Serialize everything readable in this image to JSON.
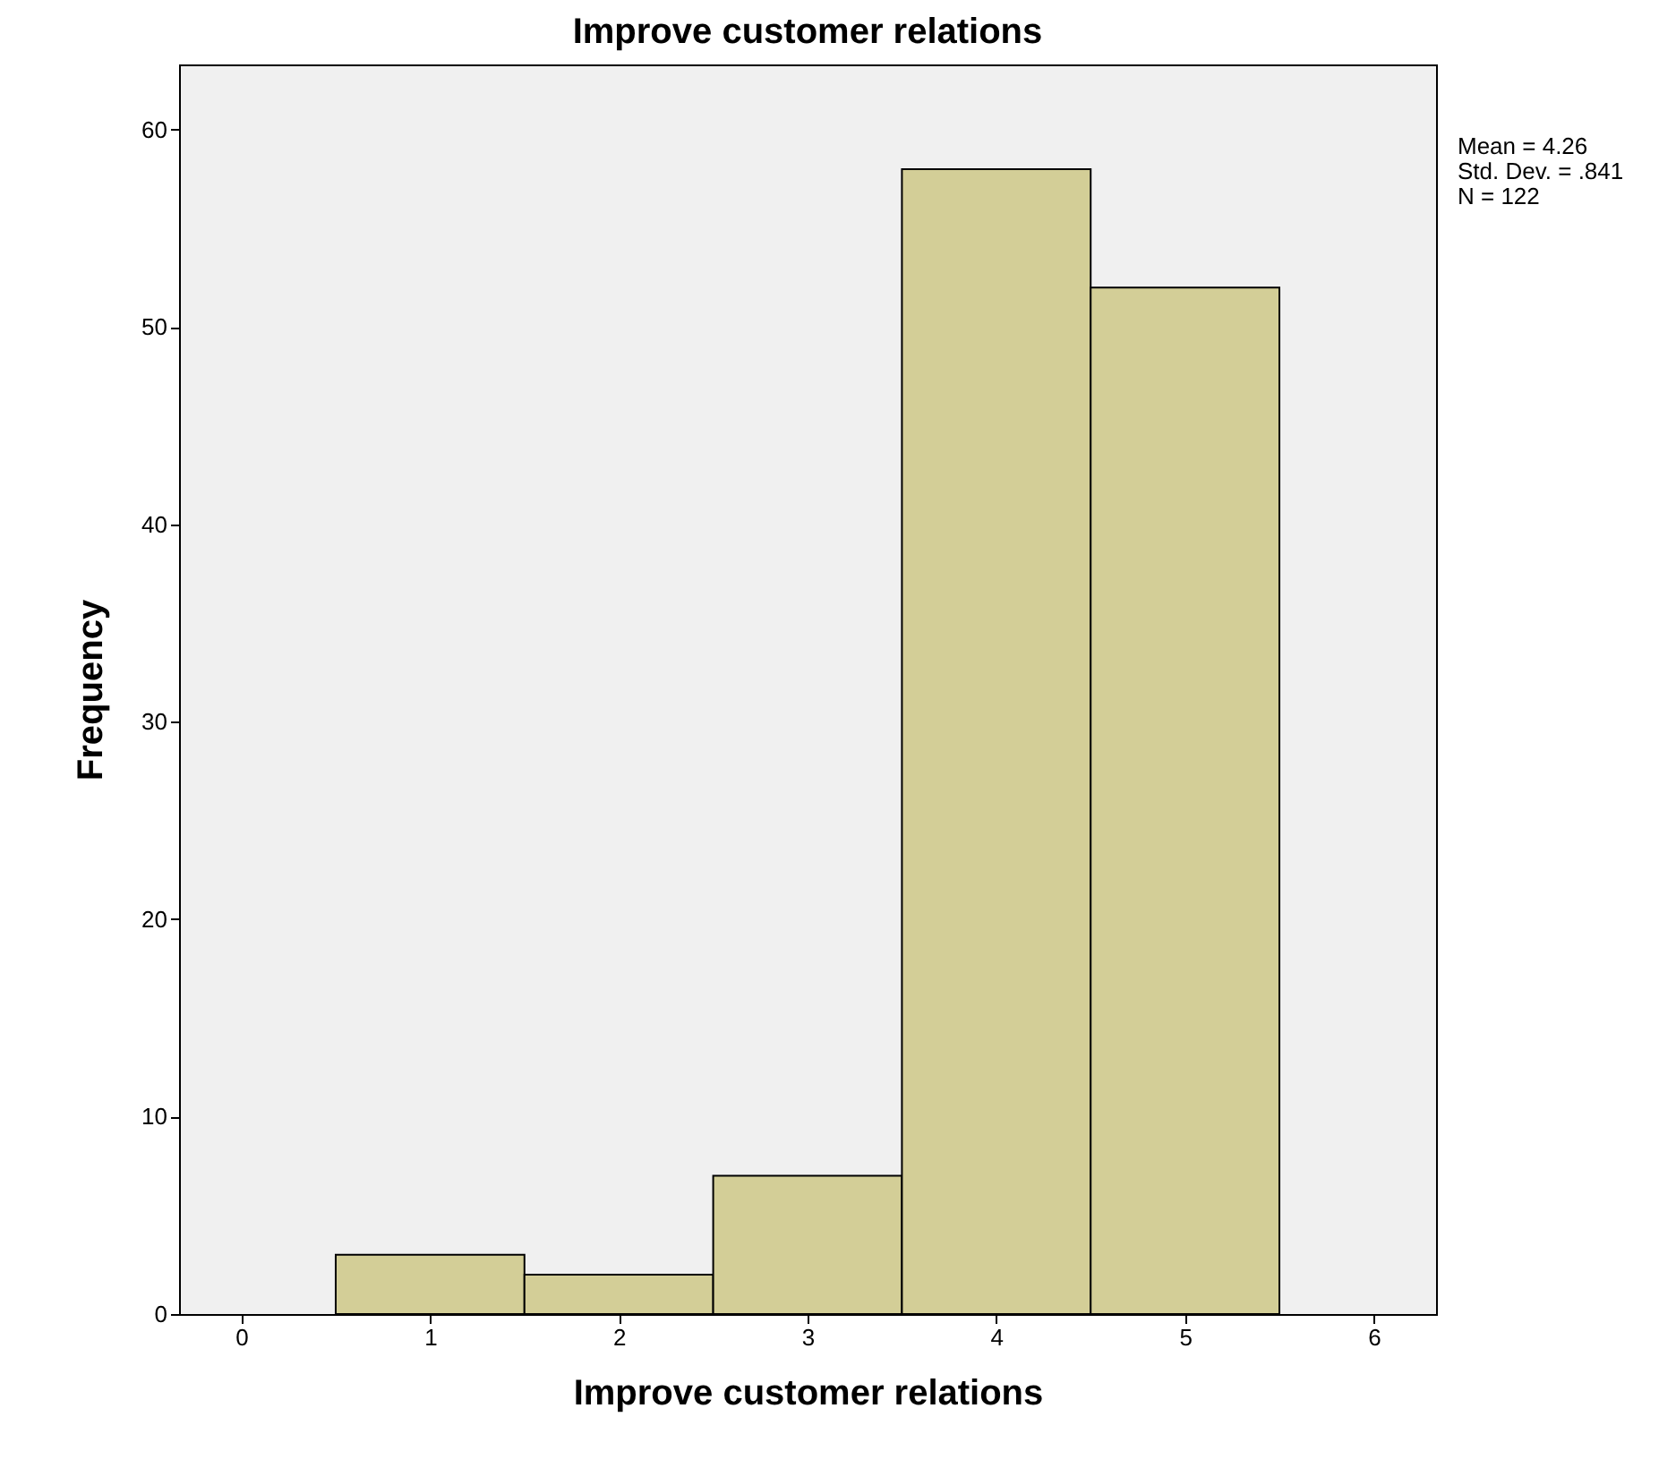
{
  "chart_data": {
    "type": "histogram",
    "title": "Improve customer relations",
    "xlabel": "Improve customer relations",
    "ylabel": "Frequency",
    "bins": [
      0.5,
      1.5,
      2.5,
      3.5,
      4.5,
      5.5
    ],
    "values": [
      3,
      2,
      7,
      58,
      52
    ],
    "color": "#d3ce97",
    "xlim": [
      -0.33,
      6.33
    ],
    "xticks": [
      0,
      1,
      2,
      3,
      4,
      5,
      6
    ],
    "ylim": [
      0,
      63.3
    ],
    "yticks": [
      0,
      10,
      20,
      30,
      40,
      50,
      60
    ],
    "grid": false,
    "annotations": [
      "Mean = 4.26",
      "Std. Dev. = .841",
      "N = 122"
    ]
  }
}
